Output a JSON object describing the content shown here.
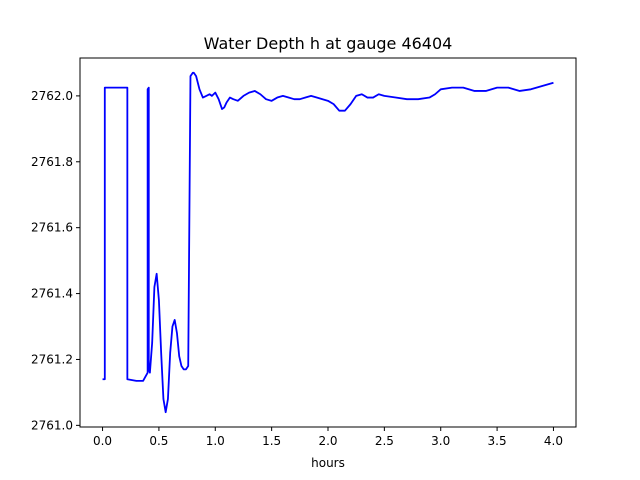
{
  "chart_data": {
    "type": "line",
    "title": "Water Depth h at gauge 46404",
    "xlabel": "hours",
    "ylabel": "",
    "xlim": [
      -0.2,
      4.2
    ],
    "ylim": [
      2760.995,
      2762.115
    ],
    "xticks": [
      0.0,
      0.5,
      1.0,
      1.5,
      2.0,
      2.5,
      3.0,
      3.5,
      4.0
    ],
    "xtick_labels": [
      "0.0",
      "0.5",
      "1.0",
      "1.5",
      "2.0",
      "2.5",
      "3.0",
      "3.5",
      "4.0"
    ],
    "yticks": [
      2761.0,
      2761.2,
      2761.4,
      2761.6,
      2761.8,
      2762.0
    ],
    "ytick_labels": [
      "2761.0",
      "2761.2",
      "2761.4",
      "2761.6",
      "2761.8",
      "2762.0"
    ],
    "grid": false,
    "series": [
      {
        "color": "#0000ff",
        "x": [
          0.0,
          0.02,
          0.02,
          0.22,
          0.22,
          0.3,
          0.36,
          0.4,
          0.4,
          0.41,
          0.41,
          0.42,
          0.44,
          0.46,
          0.48,
          0.5,
          0.52,
          0.54,
          0.56,
          0.58,
          0.6,
          0.62,
          0.64,
          0.66,
          0.68,
          0.7,
          0.72,
          0.74,
          0.76,
          0.78,
          0.8,
          0.81,
          0.81,
          0.83,
          0.86,
          0.89,
          0.92,
          0.95,
          0.97,
          1.0,
          1.03,
          1.06,
          1.08,
          1.1,
          1.13,
          1.16,
          1.2,
          1.25,
          1.3,
          1.35,
          1.4,
          1.45,
          1.5,
          1.55,
          1.6,
          1.65,
          1.7,
          1.75,
          1.8,
          1.85,
          1.9,
          2.0,
          2.05,
          2.1,
          2.15,
          2.2,
          2.25,
          2.3,
          2.35,
          2.4,
          2.45,
          2.5,
          2.6,
          2.7,
          2.8,
          2.9,
          2.95,
          3.0,
          3.1,
          3.2,
          3.3,
          3.4,
          3.5,
          3.6,
          3.7,
          3.8,
          3.9,
          4.0
        ],
        "y": [
          2761.14,
          2761.14,
          2762.025,
          2762.025,
          2761.14,
          2761.135,
          2761.135,
          2761.16,
          2762.02,
          2762.025,
          2761.17,
          2761.16,
          2761.25,
          2761.42,
          2761.46,
          2761.38,
          2761.22,
          2761.08,
          2761.04,
          2761.08,
          2761.22,
          2761.3,
          2761.32,
          2761.28,
          2761.21,
          2761.18,
          2761.17,
          2761.17,
          2761.18,
          2762.06,
          2762.07,
          2762.07,
          2762.07,
          2762.06,
          2762.02,
          2761.995,
          2762.0,
          2762.005,
          2762.0,
          2762.01,
          2761.99,
          2761.96,
          2761.965,
          2761.98,
          2761.995,
          2761.99,
          2761.985,
          2762.0,
          2762.01,
          2762.015,
          2762.005,
          2761.99,
          2761.985,
          2761.995,
          2762.0,
          2761.995,
          2761.99,
          2761.99,
          2761.995,
          2762.0,
          2761.995,
          2761.985,
          2761.975,
          2761.955,
          2761.955,
          2761.975,
          2762.0,
          2762.005,
          2761.995,
          2761.995,
          2762.005,
          2762.0,
          2761.995,
          2761.99,
          2761.99,
          2761.995,
          2762.005,
          2762.02,
          2762.025,
          2762.025,
          2762.015,
          2762.015,
          2762.025,
          2762.025,
          2762.015,
          2762.02,
          2762.03,
          2762.04
        ]
      }
    ]
  }
}
